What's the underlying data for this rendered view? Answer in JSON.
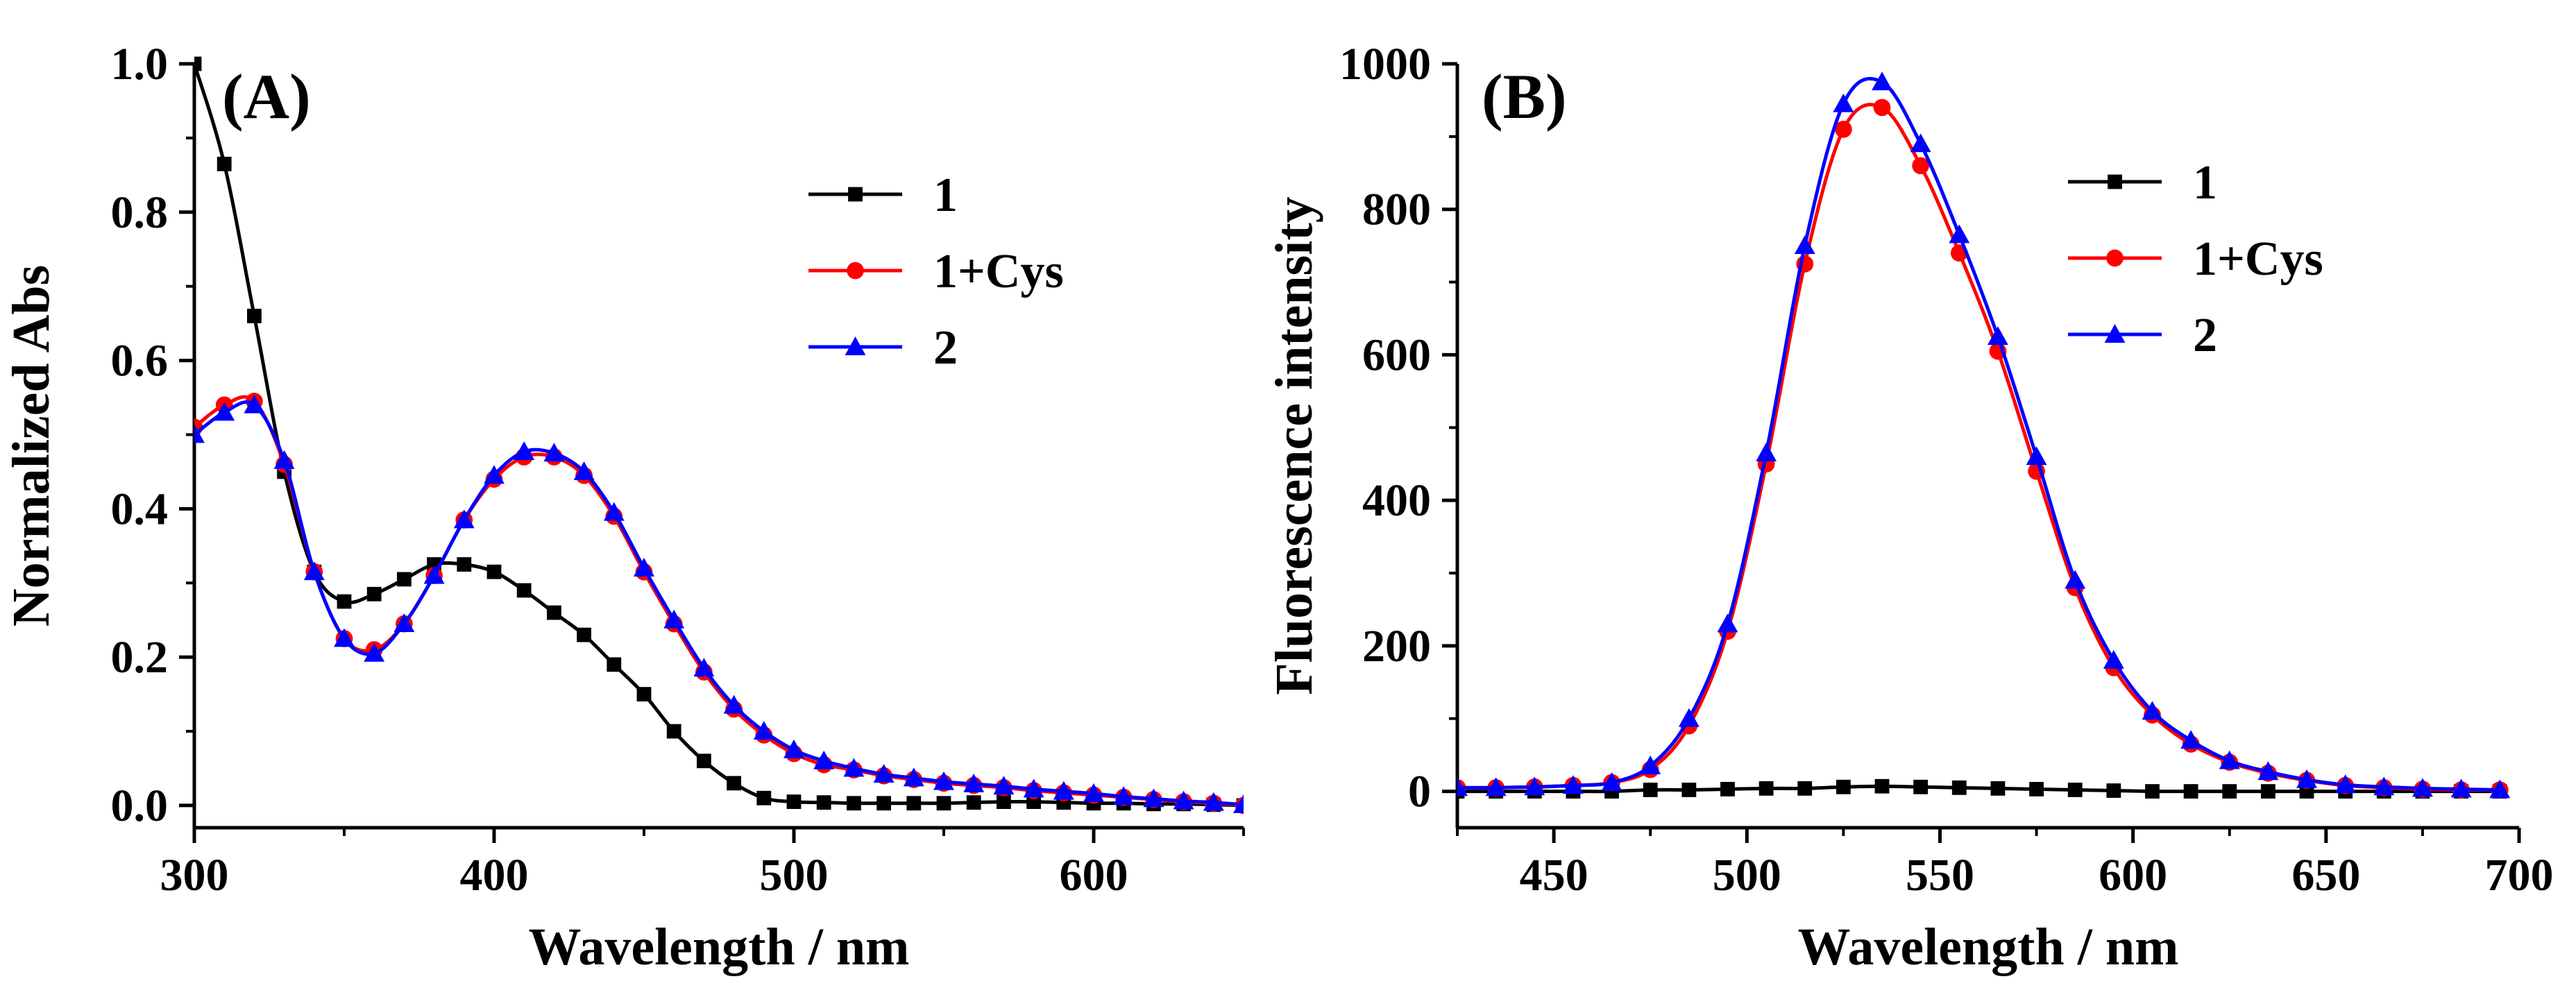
{
  "figure": {
    "panels": [
      "A",
      "B"
    ]
  },
  "colors": {
    "s1": "#000000",
    "s1cys": "#ff0000",
    "s2": "#0000ff",
    "axis": "#000000"
  },
  "chart_data": [
    {
      "type": "line",
      "panel_label": "(A)",
      "xlabel": "Wavelength / nm",
      "ylabel": "Normalized Abs",
      "xlim": [
        300,
        650
      ],
      "ylim": [
        -0.03,
        1.0
      ],
      "xticks": [
        "300",
        "400",
        "500",
        "600"
      ],
      "yticks": [
        "0.0",
        "0.2",
        "0.4",
        "0.6",
        "0.8",
        "1.0"
      ],
      "legend_position": "upper-right",
      "series": [
        {
          "name": "1",
          "marker": "square",
          "x": [
            300,
            310,
            320,
            330,
            340,
            350,
            360,
            370,
            380,
            390,
            400,
            410,
            420,
            430,
            440,
            450,
            460,
            470,
            480,
            490,
            500,
            510,
            520,
            530,
            540,
            550,
            560,
            570,
            580,
            590,
            600,
            610,
            620,
            630,
            640,
            650
          ],
          "y": [
            1.0,
            0.865,
            0.66,
            0.45,
            0.315,
            0.275,
            0.285,
            0.305,
            0.325,
            0.325,
            0.315,
            0.29,
            0.26,
            0.23,
            0.19,
            0.15,
            0.1,
            0.06,
            0.03,
            0.01,
            0.005,
            0.004,
            0.003,
            0.003,
            0.003,
            0.003,
            0.004,
            0.005,
            0.005,
            0.004,
            0.003,
            0.003,
            0.002,
            0.002,
            0.001,
            0.0
          ]
        },
        {
          "name": "1+Cys",
          "marker": "circle",
          "x": [
            300,
            310,
            320,
            330,
            340,
            350,
            360,
            370,
            380,
            390,
            400,
            410,
            420,
            430,
            440,
            450,
            460,
            470,
            480,
            490,
            500,
            510,
            520,
            530,
            540,
            550,
            560,
            570,
            580,
            590,
            600,
            610,
            620,
            630,
            640,
            650
          ],
          "y": [
            0.51,
            0.54,
            0.545,
            0.46,
            0.315,
            0.225,
            0.21,
            0.245,
            0.31,
            0.385,
            0.44,
            0.47,
            0.47,
            0.445,
            0.39,
            0.315,
            0.245,
            0.18,
            0.13,
            0.095,
            0.07,
            0.055,
            0.048,
            0.04,
            0.035,
            0.03,
            0.027,
            0.024,
            0.02,
            0.017,
            0.014,
            0.011,
            0.008,
            0.005,
            0.003,
            0.0
          ]
        },
        {
          "name": "2",
          "marker": "triangle",
          "x": [
            300,
            310,
            320,
            330,
            340,
            350,
            360,
            370,
            380,
            390,
            400,
            410,
            420,
            430,
            440,
            450,
            460,
            470,
            480,
            490,
            500,
            510,
            520,
            530,
            540,
            550,
            560,
            570,
            580,
            590,
            600,
            610,
            620,
            630,
            640,
            650
          ],
          "y": [
            0.5,
            0.53,
            0.54,
            0.465,
            0.315,
            0.225,
            0.205,
            0.245,
            0.31,
            0.385,
            0.445,
            0.477,
            0.475,
            0.45,
            0.395,
            0.32,
            0.25,
            0.185,
            0.135,
            0.1,
            0.075,
            0.06,
            0.05,
            0.042,
            0.037,
            0.032,
            0.029,
            0.026,
            0.022,
            0.019,
            0.016,
            0.012,
            0.009,
            0.006,
            0.004,
            0.001
          ]
        }
      ]
    },
    {
      "type": "line",
      "panel_label": "(B)",
      "xlabel": "Wavelength / nm",
      "ylabel": "Fluorescence intensity",
      "xlim": [
        425,
        700
      ],
      "ylim": [
        -50,
        1000
      ],
      "xticks": [
        "450",
        "500",
        "550",
        "600",
        "650",
        "700"
      ],
      "yticks": [
        "0",
        "200",
        "400",
        "600",
        "800",
        "1000"
      ],
      "legend_position": "upper-right",
      "series": [
        {
          "name": "1",
          "marker": "square",
          "x": [
            425,
            435,
            445,
            455,
            465,
            475,
            485,
            495,
            505,
            515,
            525,
            535,
            545,
            555,
            565,
            575,
            585,
            595,
            605,
            615,
            625,
            635,
            645,
            655,
            665,
            675,
            685,
            695
          ],
          "y": [
            0,
            0,
            0,
            0,
            0,
            2,
            2,
            3,
            4,
            4,
            6,
            7,
            6,
            5,
            4,
            3,
            2,
            1,
            0,
            0,
            0,
            0,
            0,
            0,
            0,
            0,
            0,
            0
          ]
        },
        {
          "name": "1+Cys",
          "marker": "circle",
          "x": [
            425,
            435,
            445,
            455,
            465,
            475,
            485,
            495,
            505,
            515,
            525,
            535,
            545,
            555,
            565,
            575,
            585,
            595,
            605,
            615,
            625,
            635,
            645,
            655,
            665,
            675,
            685,
            695
          ],
          "y": [
            5,
            5,
            6,
            8,
            12,
            30,
            90,
            220,
            450,
            725,
            910,
            940,
            860,
            740,
            605,
            440,
            280,
            170,
            105,
            65,
            40,
            25,
            15,
            8,
            5,
            3,
            2,
            2
          ]
        },
        {
          "name": "2",
          "marker": "triangle",
          "x": [
            425,
            435,
            445,
            455,
            465,
            475,
            485,
            495,
            505,
            515,
            525,
            535,
            545,
            555,
            565,
            575,
            585,
            595,
            605,
            615,
            625,
            635,
            645,
            655,
            665,
            675,
            685,
            695
          ],
          "y": [
            5,
            5,
            6,
            8,
            12,
            35,
            100,
            230,
            465,
            750,
            945,
            975,
            890,
            765,
            625,
            460,
            290,
            180,
            110,
            70,
            42,
            27,
            16,
            9,
            6,
            4,
            3,
            2
          ]
        }
      ]
    }
  ]
}
